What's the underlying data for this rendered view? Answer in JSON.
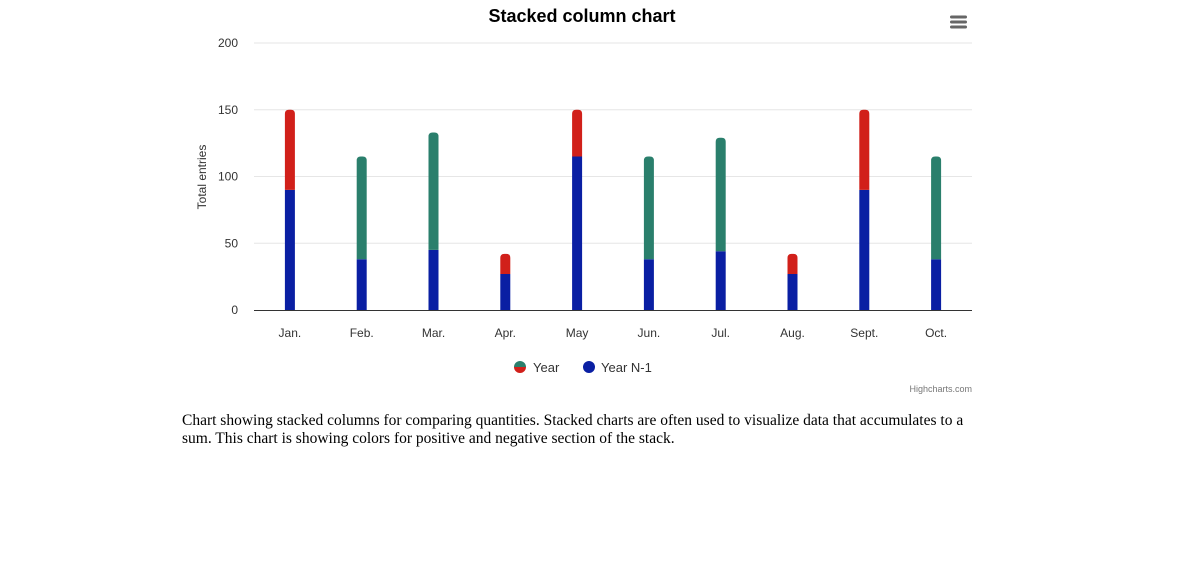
{
  "chart_data": {
    "type": "bar",
    "stacked": true,
    "title": "Stacked column chart",
    "categories": [
      "Jan.",
      "Feb.",
      "Mar.",
      "Apr.",
      "May",
      "Jun.",
      "Jul.",
      "Aug.",
      "Sept.",
      "Oct."
    ],
    "series": [
      {
        "name": "Year N-1",
        "color": "#0a1fa3",
        "values": [
          90,
          38,
          45,
          27,
          115,
          38,
          44,
          27,
          90,
          38
        ]
      },
      {
        "name": "Year",
        "color_positive": "#d1201a",
        "color_negative": "#2a7f6c",
        "values": [
          60,
          77,
          88,
          15,
          35,
          77,
          85,
          15,
          60,
          77
        ],
        "value_colors": [
          "#d1201a",
          "#2a7f6c",
          "#2a7f6c",
          "#d1201a",
          "#d1201a",
          "#2a7f6c",
          "#2a7f6c",
          "#d1201a",
          "#d1201a",
          "#2a7f6c"
        ]
      }
    ],
    "ylabel": "Total entries",
    "xlabel": "",
    "ylim": [
      0,
      200
    ],
    "yticks": [
      0,
      50,
      100,
      150,
      200
    ],
    "grid": true,
    "legend_position": "bottom-center"
  },
  "legend": {
    "items": [
      {
        "name": "Year",
        "colors": [
          "#2a7f6c",
          "#d1201a"
        ]
      },
      {
        "name": "Year N-1",
        "colors": [
          "#0a1fa3"
        ]
      }
    ]
  },
  "menu": {
    "icon": "hamburger-menu-icon"
  },
  "credits": "Highcharts.com",
  "description": "Chart showing stacked columns for comparing quantities. Stacked charts are often used to visualize data that accumulates to a sum. This chart is showing colors for positive and negative section of the stack."
}
